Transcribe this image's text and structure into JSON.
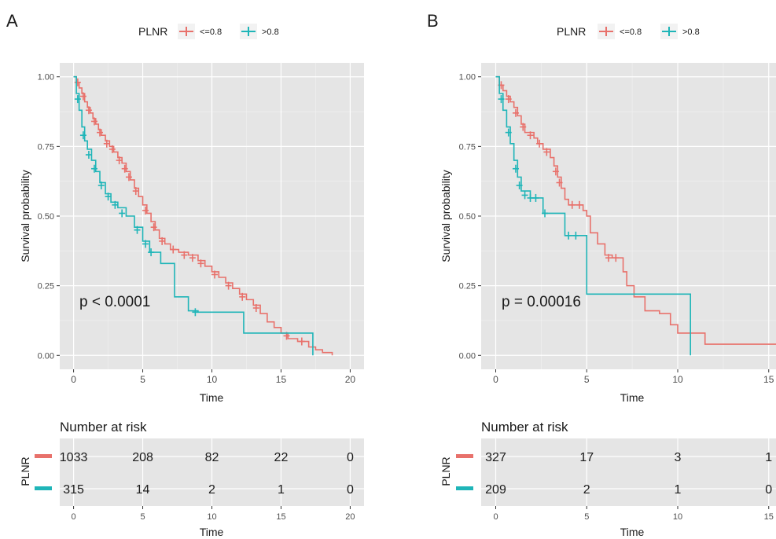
{
  "colors": {
    "low": "#e8716b",
    "high": "#1fb5b8",
    "panel": "#e5e5e5",
    "grid": "#ffffff"
  },
  "chart_data": [
    {
      "panel_letter": "A",
      "type": "line",
      "legend": {
        "title": "PLNR",
        "entries": [
          "<=0.8",
          ">0.8"
        ],
        "position": "top"
      },
      "xlabel": "Time",
      "ylabel": "Survival probability",
      "xlim": [
        -1,
        21
      ],
      "ylim": [
        0,
        1
      ],
      "x_ticks": [
        0,
        5,
        10,
        15,
        20
      ],
      "y_ticks": [
        "0.00",
        "0.25",
        "0.50",
        "0.75",
        "1.00"
      ],
      "grid": true,
      "annotation": "p < 0.0001",
      "series": [
        {
          "name": "<=0.8",
          "color": "#e8716b",
          "steps": [
            [
              0,
              1.0
            ],
            [
              0.2,
              0.98
            ],
            [
              0.4,
              0.96
            ],
            [
              0.6,
              0.94
            ],
            [
              0.8,
              0.91
            ],
            [
              1.0,
              0.89
            ],
            [
              1.2,
              0.87
            ],
            [
              1.4,
              0.85
            ],
            [
              1.6,
              0.83
            ],
            [
              1.8,
              0.81
            ],
            [
              2.0,
              0.79
            ],
            [
              2.3,
              0.77
            ],
            [
              2.6,
              0.75
            ],
            [
              2.9,
              0.73
            ],
            [
              3.2,
              0.71
            ],
            [
              3.5,
              0.69
            ],
            [
              3.8,
              0.66
            ],
            [
              4.1,
              0.63
            ],
            [
              4.4,
              0.6
            ],
            [
              4.7,
              0.57
            ],
            [
              5.0,
              0.54
            ],
            [
              5.3,
              0.51
            ],
            [
              5.6,
              0.48
            ],
            [
              5.9,
              0.45
            ],
            [
              6.2,
              0.42
            ],
            [
              6.6,
              0.4
            ],
            [
              7.0,
              0.38
            ],
            [
              7.6,
              0.37
            ],
            [
              8.3,
              0.36
            ],
            [
              9.0,
              0.34
            ],
            [
              9.5,
              0.32
            ],
            [
              10.0,
              0.3
            ],
            [
              10.5,
              0.28
            ],
            [
              11.0,
              0.26
            ],
            [
              11.5,
              0.24
            ],
            [
              12.0,
              0.22
            ],
            [
              12.5,
              0.2
            ],
            [
              13.0,
              0.18
            ],
            [
              13.5,
              0.15
            ],
            [
              14.0,
              0.12
            ],
            [
              14.5,
              0.1
            ],
            [
              15.0,
              0.08
            ],
            [
              15.5,
              0.06
            ],
            [
              16.2,
              0.05
            ],
            [
              17.0,
              0.03
            ],
            [
              17.5,
              0.02
            ],
            [
              18.0,
              0.01
            ],
            [
              18.7,
              0.0
            ]
          ],
          "censors": [
            [
              0.3,
              0.98
            ],
            [
              0.7,
              0.93
            ],
            [
              1.1,
              0.88
            ],
            [
              1.5,
              0.84
            ],
            [
              1.9,
              0.8
            ],
            [
              2.4,
              0.76
            ],
            [
              2.8,
              0.74
            ],
            [
              3.3,
              0.7
            ],
            [
              3.7,
              0.67
            ],
            [
              4.0,
              0.64
            ],
            [
              4.5,
              0.59
            ],
            [
              5.2,
              0.52
            ],
            [
              5.8,
              0.46
            ],
            [
              6.4,
              0.41
            ],
            [
              7.2,
              0.38
            ],
            [
              8.0,
              0.36
            ],
            [
              8.6,
              0.35
            ],
            [
              9.2,
              0.33
            ],
            [
              10.2,
              0.29
            ],
            [
              11.2,
              0.25
            ],
            [
              12.2,
              0.21
            ],
            [
              13.2,
              0.17
            ],
            [
              15.4,
              0.07
            ],
            [
              16.5,
              0.05
            ]
          ]
        },
        {
          "name": ">0.8",
          "color": "#1fb5b8",
          "steps": [
            [
              0,
              1.0
            ],
            [
              0.2,
              0.94
            ],
            [
              0.4,
              0.88
            ],
            [
              0.6,
              0.82
            ],
            [
              0.8,
              0.77
            ],
            [
              1.0,
              0.74
            ],
            [
              1.3,
              0.7
            ],
            [
              1.6,
              0.66
            ],
            [
              1.9,
              0.62
            ],
            [
              2.3,
              0.58
            ],
            [
              2.7,
              0.55
            ],
            [
              3.2,
              0.53
            ],
            [
              3.8,
              0.5
            ],
            [
              4.4,
              0.46
            ],
            [
              5.0,
              0.41
            ],
            [
              5.5,
              0.37
            ],
            [
              6.3,
              0.33
            ],
            [
              7.3,
              0.21
            ],
            [
              8.3,
              0.16
            ],
            [
              9.0,
              0.155
            ],
            [
              12.3,
              0.08
            ],
            [
              17.3,
              0.0
            ]
          ],
          "censors": [
            [
              0.3,
              0.92
            ],
            [
              0.7,
              0.79
            ],
            [
              1.1,
              0.72
            ],
            [
              1.5,
              0.67
            ],
            [
              2.0,
              0.61
            ],
            [
              2.5,
              0.57
            ],
            [
              3.0,
              0.54
            ],
            [
              3.5,
              0.51
            ],
            [
              4.6,
              0.45
            ],
            [
              5.2,
              0.4
            ],
            [
              5.6,
              0.37
            ],
            [
              8.8,
              0.155
            ]
          ]
        }
      ],
      "risk_table": {
        "title": "Number at risk",
        "strata_label": "PLNR",
        "x_ticks": [
          0,
          5,
          10,
          15,
          20
        ],
        "xlabel": "Time",
        "rows": [
          {
            "name": "<=0.8",
            "values": [
              "1033",
              "208",
              "82",
              "22",
              "0"
            ]
          },
          {
            "name": ">0.8",
            "values": [
              "315",
              "14",
              "2",
              "1",
              "0"
            ]
          }
        ]
      }
    },
    {
      "panel_letter": "B",
      "type": "line",
      "legend": {
        "title": "PLNR",
        "entries": [
          "<=0.8",
          ">0.8"
        ],
        "position": "top"
      },
      "xlabel": "Time",
      "ylabel": "Survival probability",
      "xlim": [
        -0.8,
        15.4
      ],
      "ylim": [
        0,
        1
      ],
      "x_ticks": [
        0,
        5,
        10,
        15
      ],
      "y_ticks": [
        "0.00",
        "0.25",
        "0.50",
        "0.75",
        "1.00"
      ],
      "grid": true,
      "annotation": "p = 0.00016",
      "series": [
        {
          "name": "<=0.8",
          "color": "#e8716b",
          "steps": [
            [
              0,
              1.0
            ],
            [
              0.2,
              0.97
            ],
            [
              0.4,
              0.95
            ],
            [
              0.6,
              0.93
            ],
            [
              0.8,
              0.91
            ],
            [
              1.0,
              0.89
            ],
            [
              1.2,
              0.86
            ],
            [
              1.4,
              0.83
            ],
            [
              1.6,
              0.8
            ],
            [
              2.1,
              0.78
            ],
            [
              2.3,
              0.76
            ],
            [
              2.6,
              0.74
            ],
            [
              3.0,
              0.71
            ],
            [
              3.2,
              0.68
            ],
            [
              3.4,
              0.64
            ],
            [
              3.6,
              0.6
            ],
            [
              3.8,
              0.56
            ],
            [
              4.0,
              0.54
            ],
            [
              4.8,
              0.52
            ],
            [
              5.0,
              0.5
            ],
            [
              5.2,
              0.44
            ],
            [
              5.6,
              0.4
            ],
            [
              6.0,
              0.36
            ],
            [
              6.4,
              0.35
            ],
            [
              7.0,
              0.3
            ],
            [
              7.2,
              0.25
            ],
            [
              7.6,
              0.21
            ],
            [
              8.2,
              0.16
            ],
            [
              9.0,
              0.15
            ],
            [
              9.6,
              0.11
            ],
            [
              10.0,
              0.08
            ],
            [
              10.8,
              0.08
            ],
            [
              11.5,
              0.04
            ],
            [
              15.4,
              0.04
            ]
          ],
          "censors": [
            [
              0.3,
              0.97
            ],
            [
              0.7,
              0.92
            ],
            [
              1.1,
              0.87
            ],
            [
              1.5,
              0.82
            ],
            [
              1.9,
              0.79
            ],
            [
              2.4,
              0.76
            ],
            [
              2.8,
              0.73
            ],
            [
              3.3,
              0.66
            ],
            [
              3.5,
              0.62
            ],
            [
              4.2,
              0.54
            ],
            [
              4.6,
              0.54
            ],
            [
              6.2,
              0.35
            ],
            [
              6.6,
              0.35
            ]
          ]
        },
        {
          "name": ">0.8",
          "color": "#1fb5b8",
          "steps": [
            [
              0,
              1.0
            ],
            [
              0.2,
              0.94
            ],
            [
              0.4,
              0.88
            ],
            [
              0.6,
              0.82
            ],
            [
              0.8,
              0.76
            ],
            [
              1.0,
              0.7
            ],
            [
              1.2,
              0.64
            ],
            [
              1.4,
              0.59
            ],
            [
              1.9,
              0.565
            ],
            [
              2.6,
              0.51
            ],
            [
              3.8,
              0.43
            ],
            [
              5.0,
              0.22
            ],
            [
              10.7,
              0.0
            ]
          ],
          "censors": [
            [
              0.3,
              0.92
            ],
            [
              0.7,
              0.8
            ],
            [
              1.1,
              0.67
            ],
            [
              1.3,
              0.61
            ],
            [
              1.6,
              0.575
            ],
            [
              1.9,
              0.565
            ],
            [
              2.2,
              0.565
            ],
            [
              2.7,
              0.51
            ],
            [
              4.0,
              0.43
            ],
            [
              4.4,
              0.43
            ]
          ]
        }
      ],
      "risk_table": {
        "title": "Number at risk",
        "strata_label": "PLNR",
        "x_ticks": [
          0,
          5,
          10,
          15
        ],
        "xlabel": "Time",
        "rows": [
          {
            "name": "<=0.8",
            "values": [
              "327",
              "17",
              "3",
              "1"
            ]
          },
          {
            "name": ">0.8",
            "values": [
              "209",
              "2",
              "1",
              "0"
            ]
          }
        ]
      }
    }
  ]
}
